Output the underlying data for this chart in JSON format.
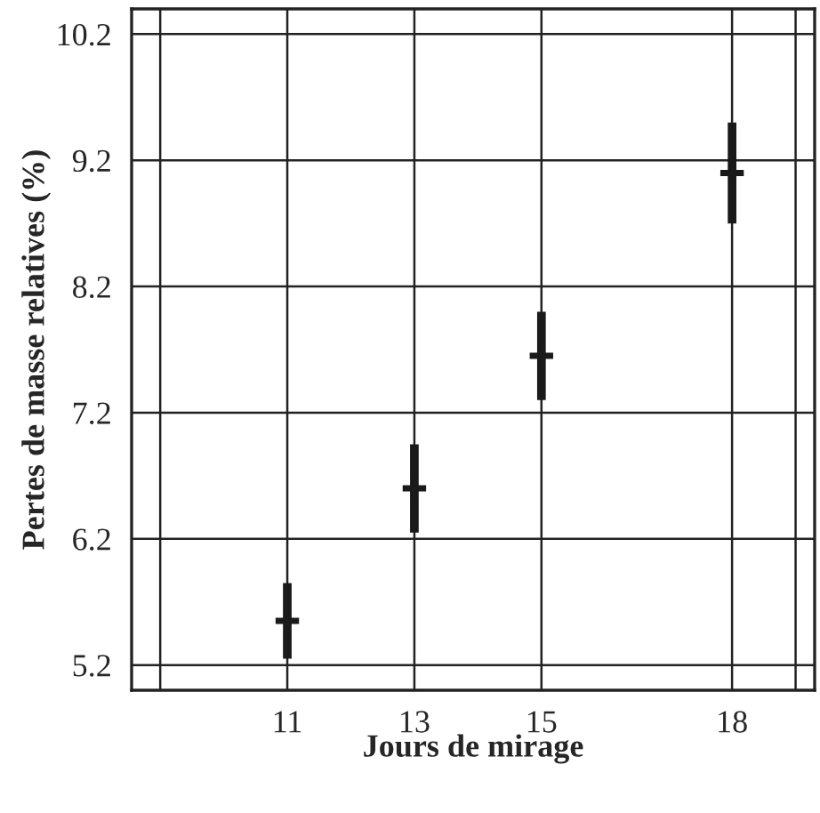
{
  "chart_data": {
    "type": "scatter",
    "xlabel": "Jours de mirage",
    "ylabel": "Pertes de masse relatives (%)",
    "x": [
      11,
      13,
      15,
      18
    ],
    "series": [
      {
        "color": "#1a1a1a",
        "values": [
          5.55,
          6.6,
          7.65,
          9.1
        ],
        "errors": [
          0.3,
          0.35,
          0.35,
          0.4
        ]
      }
    ],
    "xlim": [
      8.55,
      19.3
    ],
    "xticks": [
      {
        "value": 9,
        "label": null
      },
      11,
      13,
      15,
      18,
      {
        "value": 19,
        "label": null
      }
    ],
    "ylim": [
      5.0,
      10.4
    ],
    "yticks": [
      5.2,
      6.2,
      7.2,
      8.2,
      9.2,
      10.2
    ],
    "grid": true,
    "marker": "cross"
  }
}
